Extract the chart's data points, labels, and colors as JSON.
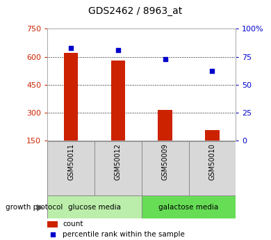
{
  "title": "GDS2462 / 8963_at",
  "samples": [
    "GSM50011",
    "GSM50012",
    "GSM50009",
    "GSM50010"
  ],
  "counts": [
    620,
    580,
    315,
    205
  ],
  "percentile_ranks": [
    83,
    81,
    73,
    62
  ],
  "bar_color": "#cc2200",
  "dot_color": "#0000cc",
  "left_ylim": [
    150,
    750
  ],
  "left_yticks": [
    150,
    300,
    450,
    600,
    750
  ],
  "right_ylim": [
    0,
    100
  ],
  "right_yticks": [
    0,
    25,
    50,
    75,
    100
  ],
  "right_yticklabels": [
    "0",
    "25",
    "50",
    "75",
    "100%"
  ],
  "left_tick_color": "#cc2200",
  "right_tick_color": "#0000cc",
  "legend_count_label": "count",
  "legend_pct_label": "percentile rank within the sample",
  "group_label": "growth protocol",
  "sample_bg_color": "#d8d8d8",
  "glucose_color": "#bbeeaa",
  "galactose_color": "#66dd55",
  "plot_bg_color": "#ffffff",
  "bar_width": 0.3,
  "title_fontsize": 10,
  "tick_fontsize": 8,
  "label_fontsize": 7.5
}
